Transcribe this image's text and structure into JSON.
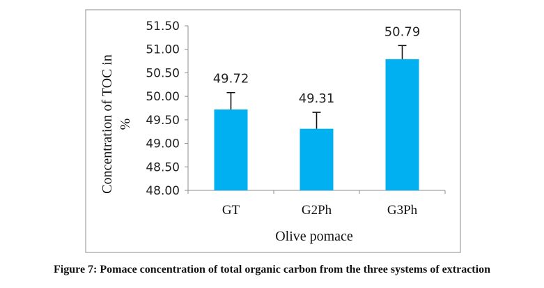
{
  "chart_data": {
    "type": "bar",
    "categories": [
      "GT",
      "G2Ph",
      "G3Ph"
    ],
    "values": [
      49.72,
      49.31,
      50.79
    ],
    "data_labels": [
      "49.72",
      "49.31",
      "50.79"
    ],
    "error_upper": [
      50.08,
      49.66,
      51.08
    ],
    "xlabel": "Olive pomace",
    "ylabel_lines": [
      "Concentration of TOC in",
      "%"
    ],
    "ylim": [
      48.0,
      51.5
    ],
    "yticks": [
      "48.00",
      "48.50",
      "49.00",
      "49.50",
      "50.00",
      "50.50",
      "51.00",
      "51.50"
    ],
    "grid": false,
    "legend": "none",
    "bar_color": "#00B0F0"
  },
  "caption": "Figure 7: Pomace concentration of total organic carbon from the three systems of extraction"
}
